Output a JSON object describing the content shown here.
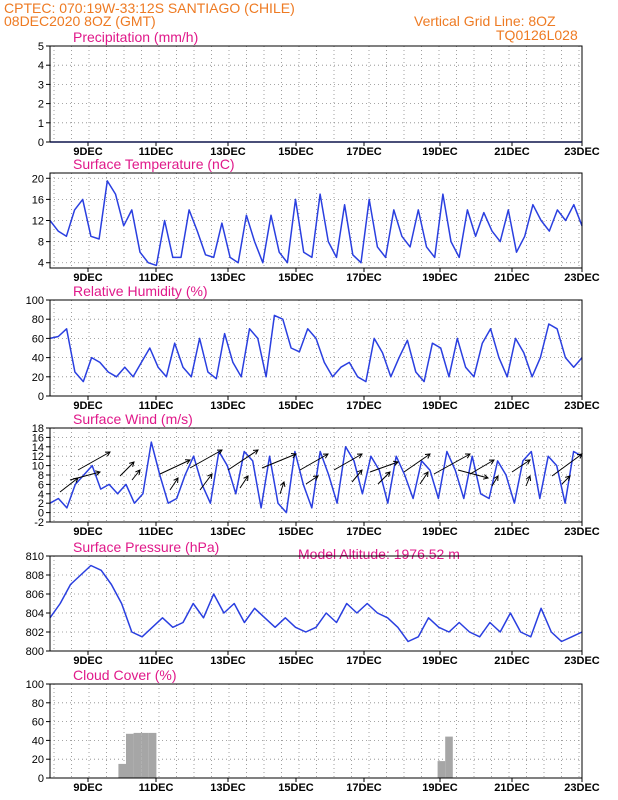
{
  "header": {
    "line1": "CPTEC:   070:19W-33:12S   SANTIAGO (CHILE)",
    "line2": "08DEC2020 8OZ (GMT)",
    "grid_note": "Vertical Grid Line: 8OZ",
    "code": "TQ0126L028"
  },
  "colors": {
    "header": "#ee7a22",
    "title": "#e0198a",
    "line": "#2a3fe0",
    "bar": "#a6a6a6",
    "arrow": "#000000"
  },
  "x_ticks": [
    "9DEC",
    "11DEC",
    "13DEC",
    "15DEC",
    "17DEC",
    "19DEC",
    "21DEC",
    "23DEC"
  ],
  "altitude_label": "Model Altitude: 1976.52 m",
  "chart_data": [
    {
      "type": "line",
      "title": "Precipitation (mm/h)",
      "y_ticks": [
        "0",
        "1",
        "2",
        "3",
        "4",
        "5"
      ],
      "ylim": [
        0,
        5
      ],
      "grid": true,
      "series": [
        {
          "values": [
            0,
            0,
            0,
            0,
            0,
            0,
            0,
            0,
            0,
            0,
            0,
            0,
            0,
            0,
            0,
            0,
            0,
            0,
            0,
            0,
            0,
            0,
            0,
            0,
            0,
            0,
            0,
            0,
            0,
            0,
            0,
            0,
            0,
            0,
            0,
            0
          ]
        }
      ]
    },
    {
      "type": "line",
      "title": "Surface Temperature (nC)",
      "y_ticks": [
        "4",
        "8",
        "12",
        "16",
        "20"
      ],
      "ylim": [
        3,
        21
      ],
      "grid": true,
      "series": [
        {
          "values": [
            12,
            10,
            9,
            14,
            16,
            9,
            8.5,
            19.5,
            17,
            11,
            14,
            6,
            4,
            3.5,
            12,
            5,
            5,
            14,
            10,
            5.5,
            5,
            11.5,
            5,
            4,
            13,
            8,
            4,
            13,
            6,
            4,
            16,
            6,
            5,
            17,
            8,
            5,
            15,
            5.5,
            4,
            16,
            7,
            5,
            14,
            9,
            7,
            14,
            7,
            5,
            17,
            8,
            5,
            14,
            9,
            13.5,
            10,
            8,
            14,
            6,
            9,
            15,
            12,
            10,
            14,
            12,
            15,
            11
          ]
        }
      ]
    },
    {
      "type": "line",
      "title": "Relative Humidity (%)",
      "y_ticks": [
        "0",
        "20",
        "40",
        "60",
        "80",
        "100"
      ],
      "ylim": [
        0,
        100
      ],
      "grid": true,
      "series": [
        {
          "values": [
            60,
            62,
            70,
            25,
            15,
            40,
            35,
            25,
            20,
            30,
            20,
            35,
            50,
            30,
            20,
            55,
            30,
            20,
            60,
            25,
            18,
            65,
            35,
            20,
            70,
            60,
            20,
            84,
            80,
            50,
            46,
            70,
            60,
            35,
            20,
            30,
            35,
            20,
            15,
            60,
            45,
            20,
            40,
            58,
            25,
            15,
            55,
            50,
            20,
            60,
            30,
            20,
            55,
            70,
            40,
            20,
            60,
            45,
            20,
            40,
            75,
            70,
            40,
            30,
            40
          ]
        }
      ]
    },
    {
      "type": "line",
      "title": "Surface Wind (m/s)",
      "y_ticks": [
        "-2",
        "0",
        "2",
        "4",
        "6",
        "8",
        "10",
        "12",
        "14",
        "16",
        "18"
      ],
      "ylim": [
        -2,
        18
      ],
      "grid": true,
      "series": [
        {
          "values": [
            2,
            3,
            1,
            6,
            8,
            10,
            5,
            6,
            4,
            6,
            2,
            4,
            15,
            8,
            2,
            3,
            8,
            12,
            6,
            2,
            13,
            10,
            4,
            13,
            11,
            1,
            12,
            2,
            0,
            13,
            6,
            1,
            13,
            8,
            2,
            14,
            11,
            4,
            12,
            9,
            2,
            12,
            8,
            3,
            11,
            9,
            3,
            13,
            9,
            3,
            12,
            4,
            3,
            11,
            8,
            2,
            11,
            13,
            3,
            12,
            10,
            2,
            13,
            12
          ]
        }
      ],
      "annotations": "wind direction arrows"
    },
    {
      "type": "line",
      "title": "Surface Pressure (hPa)",
      "y_ticks": [
        "800",
        "802",
        "804",
        "806",
        "808",
        "810"
      ],
      "ylim": [
        800,
        810
      ],
      "grid": true,
      "series": [
        {
          "values": [
            803.5,
            805,
            807,
            808,
            809,
            808.5,
            807,
            805,
            802,
            801.5,
            802.5,
            803.5,
            802.5,
            803,
            805,
            803.5,
            806,
            804,
            805,
            803,
            804.5,
            803.5,
            802.5,
            803.5,
            802.5,
            802,
            802.5,
            804,
            803,
            805,
            804,
            805,
            804,
            803.5,
            802.5,
            801,
            801.5,
            803.5,
            802.5,
            802,
            803,
            802,
            801.5,
            803,
            802,
            804,
            802,
            801.5,
            804.5,
            802,
            801,
            801.5,
            802
          ]
        }
      ]
    },
    {
      "type": "bar",
      "title": "Cloud Cover (%)",
      "y_ticks": [
        "0",
        "20",
        "40",
        "60",
        "80",
        "100"
      ],
      "ylim": [
        0,
        100
      ],
      "grid": true,
      "series": [
        {
          "values": [
            0,
            0,
            0,
            0,
            0,
            0,
            0,
            0,
            0,
            15,
            47,
            48,
            48,
            48,
            0,
            0,
            0,
            0,
            0,
            0,
            0,
            0,
            0,
            0,
            0,
            0,
            0,
            0,
            0,
            0,
            0,
            0,
            0,
            0,
            0,
            0,
            0,
            0,
            0,
            0,
            0,
            0,
            0,
            0,
            0,
            0,
            0,
            0,
            0,
            0,
            0,
            18,
            44,
            0,
            0,
            0,
            0,
            0,
            0,
            0,
            0,
            0,
            0,
            0,
            0,
            0,
            0,
            0,
            0,
            0
          ]
        }
      ]
    }
  ]
}
